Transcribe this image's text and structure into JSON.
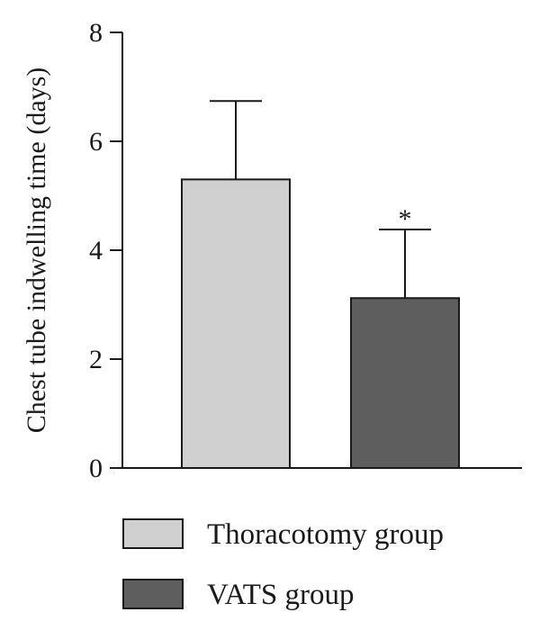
{
  "chart_data": {
    "type": "bar",
    "title": "",
    "xlabel": "",
    "ylabel": "Chest tube indwelling time (days)",
    "ylim": [
      0,
      8
    ],
    "yticks": [
      0,
      2,
      4,
      6,
      8
    ],
    "grid": false,
    "legend_position": "bottom",
    "categories": [
      "Thoracotomy group",
      "VATS group"
    ],
    "series": [
      {
        "values": [
          5.3,
          3.12
        ],
        "errors": [
          1.44,
          1.26
        ],
        "colors": [
          "#d0d0d0",
          "#5e5e5e"
        ],
        "annotations": [
          "",
          "*"
        ]
      }
    ]
  }
}
